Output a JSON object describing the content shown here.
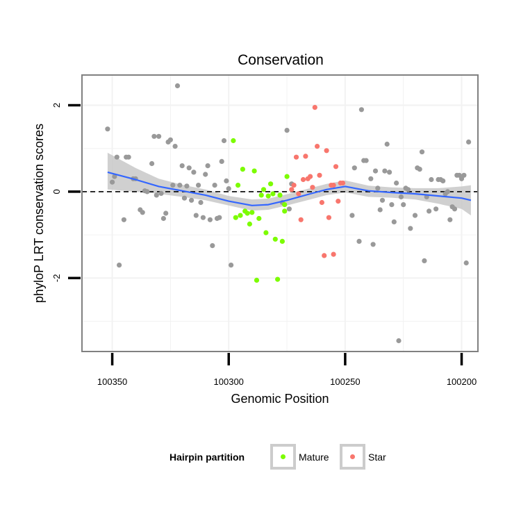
{
  "chart_data": {
    "type": "scatter",
    "title": "Conservation",
    "xlabel": "Genomic Position",
    "ylabel": "phyloP LRT conservation scores",
    "xlim": [
      100363,
      100193
    ],
    "x_reversed": true,
    "ylim": [
      -3.7,
      2.7
    ],
    "x_ticks": [
      100350,
      100300,
      100250,
      100200
    ],
    "x_tick_labels": [
      "100350",
      "100300",
      "100250",
      "100200"
    ],
    "y_ticks": [
      2,
      0,
      -2
    ],
    "y_tick_labels": [
      "2",
      "0",
      "-2"
    ],
    "grid": true,
    "reference_line": 0,
    "legend": {
      "position": "bottom",
      "title": "Hairpin partition",
      "entries": [
        {
          "label": "Mature",
          "color": "#7CFC00"
        },
        {
          "label": "Star",
          "color": "#F8766D"
        }
      ]
    },
    "colors": {
      "other": "#999999",
      "mature": "#7CFC00",
      "star": "#F8766D",
      "smooth": "#3366FF",
      "band": "#C8C8C8",
      "panel_border": "#808080",
      "grid": "#F2F2F2"
    },
    "series": [
      {
        "group": "other",
        "points": [
          [
            100352,
            1.45
          ],
          [
            100350,
            0.22
          ],
          [
            100349,
            0.35
          ],
          [
            100348,
            0.8
          ],
          [
            100347,
            -1.7
          ],
          [
            100345,
            -0.65
          ],
          [
            100344,
            0.8
          ],
          [
            100343,
            0.8
          ],
          [
            100341,
            0.3
          ],
          [
            100340,
            0.3
          ],
          [
            100338,
            -0.42
          ],
          [
            100337,
            -0.48
          ],
          [
            100336,
            0.02
          ],
          [
            100335,
            0.0
          ],
          [
            100333,
            0.65
          ],
          [
            100332,
            1.28
          ],
          [
            100331,
            -0.08
          ],
          [
            100330,
            1.28
          ],
          [
            100329,
            -0.04
          ],
          [
            100328,
            -0.62
          ],
          [
            100327,
            -0.5
          ],
          [
            100326,
            1.15
          ],
          [
            100325,
            1.2
          ],
          [
            100324,
            0.15
          ],
          [
            100323,
            1.05
          ],
          [
            100322,
            2.45
          ],
          [
            100321,
            0.15
          ],
          [
            100320,
            0.6
          ],
          [
            100319,
            -0.15
          ],
          [
            100318,
            0.13
          ],
          [
            100317,
            0.55
          ],
          [
            100316,
            -0.2
          ],
          [
            100315,
            0.45
          ],
          [
            100314,
            -0.55
          ],
          [
            100313,
            0.15
          ],
          [
            100312,
            -0.25
          ],
          [
            100311,
            -0.6
          ],
          [
            100310,
            0.4
          ],
          [
            100309,
            0.6
          ],
          [
            100308,
            -0.65
          ],
          [
            100307,
            -1.25
          ],
          [
            100306,
            0.15
          ],
          [
            100305,
            -0.62
          ],
          [
            100304,
            -0.6
          ],
          [
            100303,
            0.7
          ],
          [
            100302,
            1.18
          ],
          [
            100301,
            0.25
          ],
          [
            100300,
            0.07
          ],
          [
            100299,
            -1.7
          ],
          [
            100277,
            -0.25
          ],
          [
            100275,
            1.42
          ],
          [
            100274,
            -0.4
          ],
          [
            100273,
            0.18
          ],
          [
            100247,
            -0.55
          ],
          [
            100246,
            0.55
          ],
          [
            100244,
            -1.15
          ],
          [
            100243,
            1.9
          ],
          [
            100242,
            0.72
          ],
          [
            100241,
            0.72
          ],
          [
            100239,
            0.3
          ],
          [
            100238,
            -1.22
          ],
          [
            100237,
            0.48
          ],
          [
            100236,
            0.08
          ],
          [
            100235,
            -0.42
          ],
          [
            100234,
            -0.2
          ],
          [
            100233,
            0.48
          ],
          [
            100232,
            1.1
          ],
          [
            100231,
            0.45
          ],
          [
            100230,
            -0.3
          ],
          [
            100229,
            -0.7
          ],
          [
            100228,
            0.2
          ],
          [
            100227,
            -3.45
          ],
          [
            100226,
            -0.12
          ],
          [
            100225,
            -0.3
          ],
          [
            100224,
            0.08
          ],
          [
            100223,
            0.05
          ],
          [
            100222,
            -0.85
          ],
          [
            100220,
            -0.55
          ],
          [
            100219,
            0.55
          ],
          [
            100218,
            0.52
          ],
          [
            100217,
            0.92
          ],
          [
            100216,
            -1.6
          ],
          [
            100215,
            -0.12
          ],
          [
            100214,
            -0.45
          ],
          [
            100213,
            0.28
          ],
          [
            100211,
            -0.4
          ],
          [
            100210,
            0.28
          ],
          [
            100209,
            0.28
          ],
          [
            100208,
            0.25
          ],
          [
            100207,
            -0.05
          ],
          [
            100206,
            0.0
          ],
          [
            100205,
            -0.65
          ],
          [
            100204,
            -0.35
          ],
          [
            100203,
            -0.4
          ],
          [
            100202,
            0.38
          ],
          [
            100201,
            0.38
          ],
          [
            100200,
            0.3
          ],
          [
            100199,
            0.38
          ],
          [
            100198,
            -1.65
          ],
          [
            100197,
            1.15
          ]
        ]
      },
      {
        "group": "Mature",
        "points": [
          [
            100298,
            1.18
          ],
          [
            100297,
            -0.6
          ],
          [
            100296,
            0.15
          ],
          [
            100295,
            -0.55
          ],
          [
            100294,
            0.52
          ],
          [
            100293,
            -0.45
          ],
          [
            100292,
            -0.5
          ],
          [
            100291,
            -0.75
          ],
          [
            100290,
            -0.48
          ],
          [
            100289,
            0.48
          ],
          [
            100288,
            -2.05
          ],
          [
            100287,
            -0.62
          ],
          [
            100286,
            -0.08
          ],
          [
            100285,
            0.05
          ],
          [
            100284,
            -0.95
          ],
          [
            100283,
            -0.1
          ],
          [
            100282,
            0.18
          ],
          [
            100281,
            -0.05
          ],
          [
            100280,
            -1.1
          ],
          [
            100279,
            -2.03
          ],
          [
            100278,
            -0.08
          ],
          [
            100277,
            -1.15
          ],
          [
            100276,
            -0.45
          ],
          [
            100275,
            0.35
          ],
          [
            100276,
            -0.3
          ]
        ]
      },
      {
        "group": "Star",
        "points": [
          [
            100273,
            0.05
          ],
          [
            100272,
            0.15
          ],
          [
            100271,
            0.8
          ],
          [
            100270,
            -0.05
          ],
          [
            100269,
            -0.65
          ],
          [
            100268,
            0.28
          ],
          [
            100267,
            0.82
          ],
          [
            100266,
            0.3
          ],
          [
            100265,
            0.35
          ],
          [
            100264,
            0.1
          ],
          [
            100263,
            1.95
          ],
          [
            100262,
            1.05
          ],
          [
            100261,
            0.38
          ],
          [
            100260,
            -0.25
          ],
          [
            100259,
            -1.48
          ],
          [
            100258,
            0.95
          ],
          [
            100257,
            -0.6
          ],
          [
            100256,
            0.15
          ],
          [
            100255,
            -1.45
          ],
          [
            100254,
            0.58
          ],
          [
            100253,
            -0.22
          ],
          [
            100252,
            0.2
          ],
          [
            100251,
            0.2
          ],
          [
            100255,
            0.15
          ]
        ]
      }
    ],
    "smooth_line": {
      "x": [
        100352,
        100340,
        100330,
        100320,
        100310,
        100300,
        100290,
        100283,
        100275,
        100265,
        100258,
        100250,
        100240,
        100230,
        100220,
        100210,
        100200,
        100196
      ],
      "y": [
        0.45,
        0.28,
        0.12,
        0.02,
        -0.08,
        -0.22,
        -0.32,
        -0.3,
        -0.2,
        -0.05,
        0.05,
        0.12,
        0.02,
        -0.02,
        -0.05,
        -0.1,
        -0.15,
        -0.2
      ],
      "lower": [
        0.05,
        0.0,
        -0.05,
        -0.12,
        -0.2,
        -0.32,
        -0.44,
        -0.42,
        -0.32,
        -0.18,
        -0.08,
        -0.02,
        -0.12,
        -0.14,
        -0.18,
        -0.28,
        -0.4,
        -0.55
      ],
      "upper": [
        0.9,
        0.55,
        0.3,
        0.16,
        0.05,
        -0.1,
        -0.18,
        -0.16,
        -0.06,
        0.08,
        0.18,
        0.26,
        0.14,
        0.1,
        0.08,
        0.08,
        0.12,
        0.15
      ]
    }
  }
}
